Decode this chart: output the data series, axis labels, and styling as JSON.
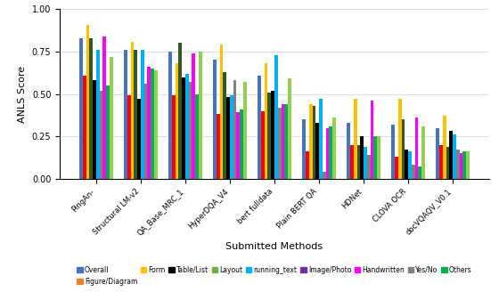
{
  "methods": [
    "PingAn-",
    "Structural LM-v2",
    "QA_Base_MRC_1",
    "HyperDQA_V4",
    "bert fulldata",
    "Plain BERT QA",
    "HDNet",
    "CLOVA OCR",
    "docVQAQV_V0.1"
  ],
  "series_order": [
    "Overall",
    "Figure/Diagram",
    "Form",
    "Table/List",
    "Layout",
    "running_text",
    "Image/Photo",
    "Handwritten",
    "Yes/No",
    "Others"
  ],
  "series": {
    "Overall": [
      0.83,
      0.76,
      0.75,
      0.7,
      0.61,
      0.35,
      0.33,
      0.32,
      0.3
    ],
    "Figure/Diagram": [
      0.61,
      0.49,
      0.49,
      0.38,
      0.4,
      0.16,
      0.2,
      0.13,
      0.2
    ],
    "Form": [
      0.91,
      0.81,
      0.68,
      0.79,
      0.68,
      0.44,
      0.47,
      0.47,
      0.37
    ],
    "Table/List": [
      0.83,
      0.76,
      0.8,
      0.63,
      0.51,
      0.43,
      0.2,
      0.35,
      0.19
    ],
    "Layout": [
      0.58,
      0.47,
      0.6,
      0.48,
      0.52,
      0.33,
      0.25,
      0.17,
      0.28
    ],
    "running_text": [
      0.76,
      0.76,
      0.62,
      0.49,
      0.73,
      0.47,
      0.19,
      0.16,
      0.26
    ],
    "Image/Photo": [
      0.52,
      0.56,
      0.57,
      0.58,
      0.42,
      0.04,
      0.14,
      0.08,
      0.17
    ],
    "Handwritten": [
      0.84,
      0.66,
      0.74,
      0.39,
      0.44,
      0.3,
      0.46,
      0.36,
      0.15
    ],
    "Yes/No": [
      0.55,
      0.65,
      0.5,
      0.41,
      0.44,
      0.31,
      0.25,
      0.07,
      0.16
    ],
    "Others": [
      0.72,
      0.64,
      0.75,
      0.57,
      0.59,
      0.36,
      0.25,
      0.31,
      0.16
    ]
  },
  "colors": {
    "Overall": "#4472C4",
    "Figure/Diagram": "#FF0000",
    "Form": "#FFC000",
    "Table/List": "#375623",
    "Layout": "#000000",
    "running_text": "#00B0F0",
    "Image/Photo": "#808080",
    "Handwritten": "#FF00FF",
    "Yes/No": "#00B050",
    "Others": "#92D050"
  },
  "xlabel": "Submitted Methods",
  "ylabel": "ANLS Score",
  "ylim": [
    0,
    1.0
  ],
  "yticks": [
    0.0,
    0.25,
    0.5,
    0.75,
    1.0
  ],
  "legend_colors": {
    "Overall": "#4472C4",
    "Figure/Diagram": "#ED7D31",
    "Form": "#FFC000",
    "Table/List": "#000000",
    "Layout": "#70AD47",
    "running_text": "#00B0F0",
    "Image/Photo": "#7030A0",
    "Handwritten": "#FF00FF",
    "Yes/No": "#808080",
    "Others": "#00B050"
  }
}
